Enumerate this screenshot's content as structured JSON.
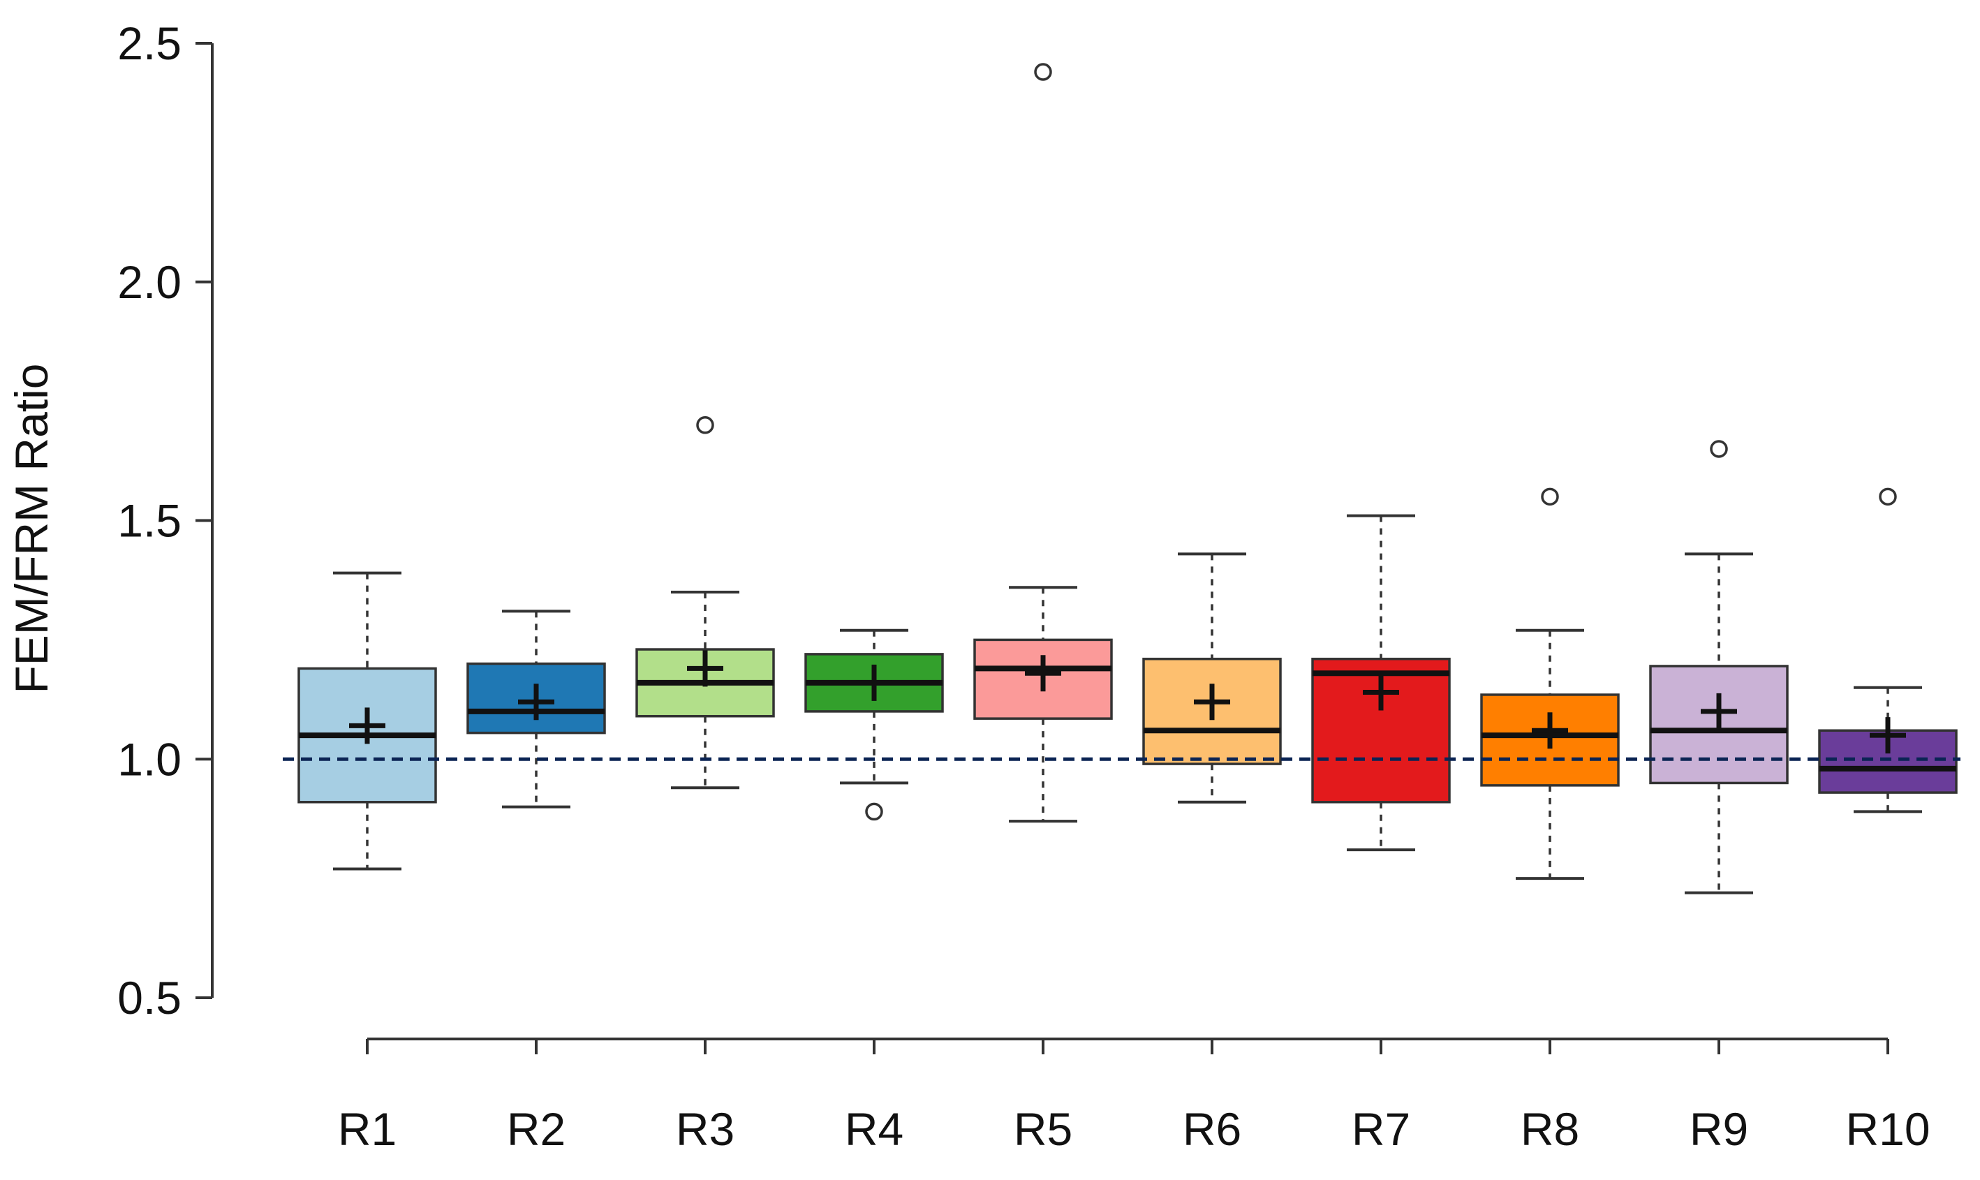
{
  "chart_data": {
    "type": "box",
    "title": "",
    "xlabel": "",
    "ylabel": "FEM/FRM Ratio",
    "ylim": [
      0.5,
      2.5
    ],
    "yticks": [
      0.5,
      1.0,
      1.5,
      2.0,
      2.5
    ],
    "ytick_labels": [
      "0.5",
      "1.0",
      "1.5",
      "2.0",
      "2.5"
    ],
    "reference_line": 1.0,
    "categories": [
      "R1",
      "R2",
      "R3",
      "R4",
      "R5",
      "R6",
      "R7",
      "R8",
      "R9",
      "R10"
    ],
    "series": [
      {
        "name": "R1",
        "color": "#a6cee3",
        "whisker_low": 0.77,
        "q1": 0.91,
        "median": 1.05,
        "q3": 1.19,
        "whisker_high": 1.39,
        "mean": 1.07,
        "outliers": []
      },
      {
        "name": "R2",
        "color": "#1f78b4",
        "whisker_low": 0.9,
        "q1": 1.055,
        "median": 1.1,
        "q3": 1.2,
        "whisker_high": 1.31,
        "mean": 1.12,
        "outliers": []
      },
      {
        "name": "R3",
        "color": "#b2df8a",
        "whisker_low": 0.94,
        "q1": 1.09,
        "median": 1.16,
        "q3": 1.23,
        "whisker_high": 1.35,
        "mean": 1.19,
        "outliers": [
          1.7
        ]
      },
      {
        "name": "R4",
        "color": "#33a02c",
        "whisker_low": 0.95,
        "q1": 1.1,
        "median": 1.16,
        "q3": 1.22,
        "whisker_high": 1.27,
        "mean": 1.16,
        "outliers": [
          0.89
        ]
      },
      {
        "name": "R5",
        "color": "#fb9a99",
        "whisker_low": 0.87,
        "q1": 1.085,
        "median": 1.19,
        "q3": 1.25,
        "whisker_high": 1.36,
        "mean": 1.18,
        "outliers": [
          2.44
        ]
      },
      {
        "name": "R6",
        "color": "#fdbf6f",
        "whisker_low": 0.91,
        "q1": 0.99,
        "median": 1.06,
        "q3": 1.21,
        "whisker_high": 1.43,
        "mean": 1.12,
        "outliers": []
      },
      {
        "name": "R7",
        "color": "#e31a1c",
        "whisker_low": 0.81,
        "q1": 0.91,
        "median": 1.18,
        "q3": 1.21,
        "whisker_high": 1.51,
        "mean": 1.14,
        "outliers": []
      },
      {
        "name": "R8",
        "color": "#ff7f00",
        "whisker_low": 0.75,
        "q1": 0.945,
        "median": 1.05,
        "q3": 1.135,
        "whisker_high": 1.27,
        "mean": 1.06,
        "outliers": [
          1.55
        ]
      },
      {
        "name": "R9",
        "color": "#cab2d6",
        "whisker_low": 0.72,
        "q1": 0.95,
        "median": 1.06,
        "q3": 1.195,
        "whisker_high": 1.43,
        "mean": 1.1,
        "outliers": [
          1.65
        ]
      },
      {
        "name": "R10",
        "color": "#6a3d9a",
        "whisker_low": 0.89,
        "q1": 0.93,
        "median": 0.98,
        "q3": 1.06,
        "whisker_high": 1.15,
        "mean": 1.05,
        "outliers": [
          1.55
        ]
      }
    ]
  }
}
